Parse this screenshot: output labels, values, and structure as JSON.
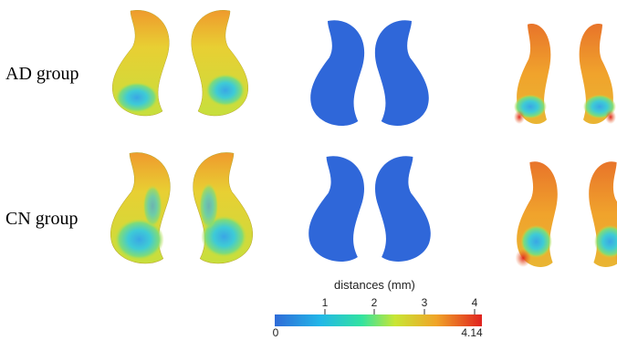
{
  "rows": [
    {
      "label": "AD group"
    },
    {
      "label": "CN group"
    }
  ],
  "colorbar": {
    "title": "distances (mm)",
    "min_label": "0",
    "max_label": "4.14",
    "ticks": [
      "1",
      "2",
      "3",
      "4"
    ],
    "colors": [
      "#2f6bd8",
      "#22b7e8",
      "#32e3a0",
      "#c8e634",
      "#f0a428",
      "#e0221f"
    ]
  },
  "shape_colors": {
    "base_blue": "#2f67d9",
    "yellow_green": "#c9e03a",
    "orange": "#ef9f2e",
    "cyan": "#3cc6e8",
    "green": "#5ed889",
    "red": "#e04528"
  }
}
